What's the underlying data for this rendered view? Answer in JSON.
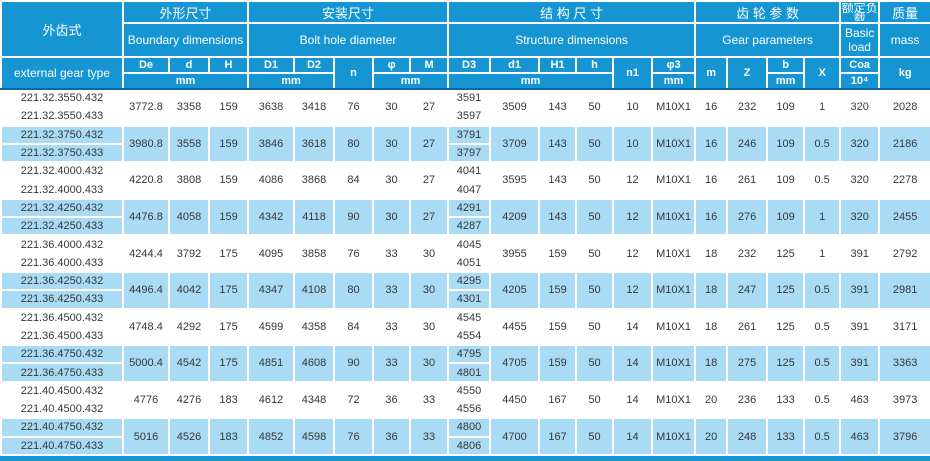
{
  "colors": {
    "header_blue": "#1695d3",
    "row_blue": "#a9dbf5",
    "row_white": "#ffffff",
    "header_underline": "#1464a5",
    "body_text": "#373737"
  },
  "table": {
    "corner": {
      "cn": "外齿式",
      "en": "external gear type"
    },
    "sections": [
      {
        "cn": "外形尺寸",
        "en": "Boundary dimensions"
      },
      {
        "cn": "安装尺寸",
        "en": "Bolt hole diameter"
      },
      {
        "cn": "结 构 尺 寸",
        "en": "Structure dimensions"
      },
      {
        "cn": "齿 轮 参 数",
        "en": "Gear parameters"
      },
      {
        "cn": "额定负载",
        "en": "Basic load"
      },
      {
        "cn": "质量",
        "en": "mass"
      }
    ],
    "columns": {
      "De": "De",
      "d": "d",
      "H": "H",
      "D1": "D1",
      "D2": "D2",
      "n": "n",
      "phi": "φ",
      "M": "M",
      "D3": "D3",
      "d1": "d1",
      "H1": "H1",
      "h": "h",
      "n1": "n1",
      "phi3": "φ3",
      "m": "m",
      "Z": "Z",
      "b": "b",
      "X": "X",
      "Coa": "Coa",
      "load_pow": "10⁴",
      "kg": "kg"
    },
    "unit_mm": "mm"
  },
  "rows": [
    {
      "types": [
        "221.32.3550.432",
        "221.32.3550.433"
      ],
      "De": "3772.8",
      "d": "3358",
      "H": "159",
      "D1": "3638",
      "D2": "3418",
      "n": "76",
      "phi": "30",
      "M": "27",
      "D3": [
        "3591",
        "3597"
      ],
      "d1": "3509",
      "H1": "143",
      "h": "50",
      "n1": "10",
      "phi3": "M10X1",
      "m": "16",
      "Z": "232",
      "b": "109",
      "X": "1",
      "Coa": "320",
      "mass": "2028"
    },
    {
      "types": [
        "221.32.3750.432",
        "221.32.3750.433"
      ],
      "De": "3980.8",
      "d": "3558",
      "H": "159",
      "D1": "3846",
      "D2": "3618",
      "n": "80",
      "phi": "30",
      "M": "27",
      "D3": [
        "3791",
        "3797"
      ],
      "d1": "3709",
      "H1": "143",
      "h": "50",
      "n1": "10",
      "phi3": "M10X1",
      "m": "16",
      "Z": "246",
      "b": "109",
      "X": "0.5",
      "Coa": "320",
      "mass": "2186"
    },
    {
      "types": [
        "221.32.4000.432",
        "221.32.4000.433"
      ],
      "De": "4220.8",
      "d": "3808",
      "H": "159",
      "D1": "4086",
      "D2": "3868",
      "n": "84",
      "phi": "30",
      "M": "27",
      "D3": [
        "4041",
        "4047"
      ],
      "d1": "3595",
      "H1": "143",
      "h": "50",
      "n1": "12",
      "phi3": "M10X1",
      "m": "16",
      "Z": "261",
      "b": "109",
      "X": "0.5",
      "Coa": "320",
      "mass": "2278"
    },
    {
      "types": [
        "221.32.4250.432",
        "221.32.4250.433"
      ],
      "De": "4476.8",
      "d": "4058",
      "H": "159",
      "D1": "4342",
      "D2": "4118",
      "n": "90",
      "phi": "30",
      "M": "27",
      "D3": [
        "4291",
        "4287"
      ],
      "d1": "4209",
      "H1": "143",
      "h": "50",
      "n1": "12",
      "phi3": "M10X1",
      "m": "16",
      "Z": "276",
      "b": "109",
      "X": "1",
      "Coa": "320",
      "mass": "2455"
    },
    {
      "types": [
        "221.36.4000.432",
        "221.36.4000.433"
      ],
      "De": "4244.4",
      "d": "3792",
      "H": "175",
      "D1": "4095",
      "D2": "3858",
      "n": "76",
      "phi": "33",
      "M": "30",
      "D3": [
        "4045",
        "4051"
      ],
      "d1": "3955",
      "H1": "159",
      "h": "50",
      "n1": "12",
      "phi3": "M10X1",
      "m": "18",
      "Z": "232",
      "b": "125",
      "X": "1",
      "Coa": "391",
      "mass": "2792"
    },
    {
      "types": [
        "221.36.4250.432",
        "221.36.4250.433"
      ],
      "De": "4496.4",
      "d": "4042",
      "H": "175",
      "D1": "4347",
      "D2": "4108",
      "n": "80",
      "phi": "33",
      "M": "30",
      "D3": [
        "4295",
        "4301"
      ],
      "d1": "4205",
      "H1": "159",
      "h": "50",
      "n1": "12",
      "phi3": "M10X1",
      "m": "18",
      "Z": "247",
      "b": "125",
      "X": "0.5",
      "Coa": "391",
      "mass": "2981"
    },
    {
      "types": [
        "221.36.4500.432",
        "221.36.4500.433"
      ],
      "De": "4748.4",
      "d": "4292",
      "H": "175",
      "D1": "4599",
      "D2": "4358",
      "n": "84",
      "phi": "33",
      "M": "30",
      "D3": [
        "4545",
        "4554"
      ],
      "d1": "4455",
      "H1": "159",
      "h": "50",
      "n1": "14",
      "phi3": "M10X1",
      "m": "18",
      "Z": "261",
      "b": "125",
      "X": "0.5",
      "Coa": "391",
      "mass": "3171"
    },
    {
      "types": [
        "221.36.4750.432",
        "221.36.4750.433"
      ],
      "De": "5000.4",
      "d": "4542",
      "H": "175",
      "D1": "4851",
      "D2": "4608",
      "n": "90",
      "phi": "33",
      "M": "30",
      "D3": [
        "4795",
        "4801"
      ],
      "d1": "4705",
      "H1": "159",
      "h": "50",
      "n1": "14",
      "phi3": "M10X1",
      "m": "18",
      "Z": "275",
      "b": "125",
      "X": "0.5",
      "Coa": "391",
      "mass": "3363"
    },
    {
      "types": [
        "221.40.4500.432",
        "221.40.4500.432"
      ],
      "De": "4776",
      "d": "4276",
      "H": "183",
      "D1": "4612",
      "D2": "4348",
      "n": "72",
      "phi": "36",
      "M": "33",
      "D3": [
        "4550",
        "4556"
      ],
      "d1": "4450",
      "H1": "167",
      "h": "50",
      "n1": "14",
      "phi3": "M10X1",
      "m": "20",
      "Z": "236",
      "b": "133",
      "X": "0.5",
      "Coa": "463",
      "mass": "3973"
    },
    {
      "types": [
        "221.40.4750.432",
        "221.40.4750.433"
      ],
      "De": "5016",
      "d": "4526",
      "H": "183",
      "D1": "4852",
      "D2": "4598",
      "n": "76",
      "phi": "36",
      "M": "33",
      "D3": [
        "4800",
        "4806"
      ],
      "d1": "4700",
      "H1": "167",
      "h": "50",
      "n1": "14",
      "phi3": "M10X1",
      "m": "20",
      "Z": "248",
      "b": "133",
      "X": "0.5",
      "Coa": "463",
      "mass": "3796"
    }
  ]
}
